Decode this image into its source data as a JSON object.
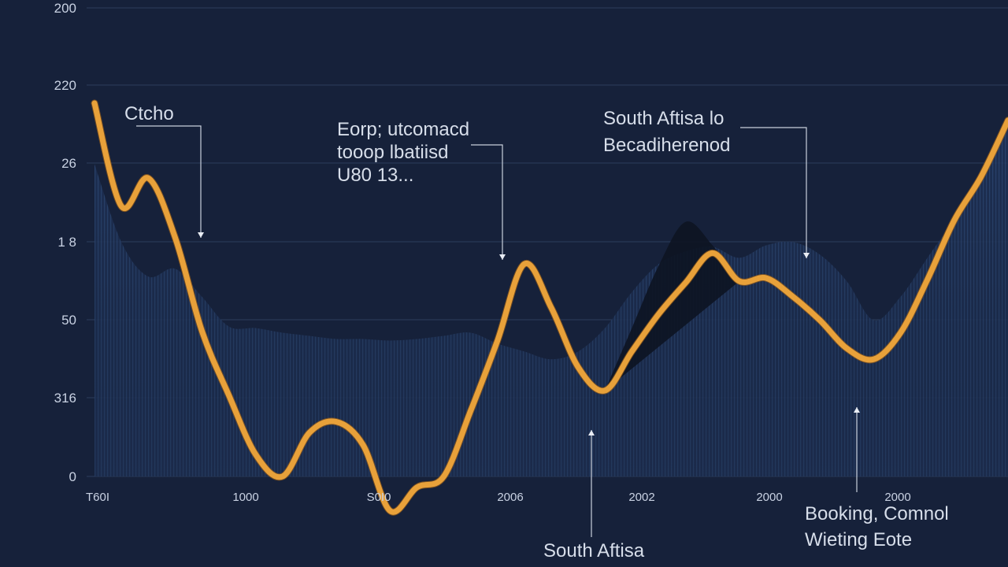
{
  "chart_data": {
    "type": "line",
    "title": "",
    "xlabel": "",
    "ylabel": "",
    "ylim": [
      0,
      300
    ],
    "grid": true,
    "y_ticks": [
      "0",
      "316",
      "50",
      "1 8",
      "26",
      "220",
      "200"
    ],
    "x_ticks": [
      "T60I",
      "1000",
      "S0I0",
      "2006",
      "2002",
      "2000",
      "2000"
    ],
    "series": [
      {
        "values": [
          239,
          173,
          191,
          153,
          93,
          52,
          14,
          0,
          28,
          35,
          20,
          -22,
          -7,
          0,
          42,
          87,
          136,
          108,
          70,
          55,
          80,
          104,
          124,
          143,
          125,
          127,
          115,
          100,
          82,
          75,
          92,
          126,
          164,
          192,
          228
        ]
      }
    ],
    "background_area": {
      "values": [
        200,
        150,
        128,
        133,
        115,
        96,
        95,
        92,
        90,
        88,
        88,
        87,
        88,
        90,
        92,
        85,
        80,
        75,
        80,
        95,
        118,
        136,
        144,
        147,
        140,
        148,
        150,
        142,
        125,
        100,
        115,
        140,
        165,
        195,
        230
      ]
    },
    "peak_area": {
      "values": [
        0,
        0,
        0,
        0,
        0,
        0,
        0,
        0,
        0,
        0,
        0,
        0,
        0,
        0,
        0,
        0,
        0,
        0,
        0,
        0,
        95,
        135,
        163,
        148,
        0
      ]
    },
    "annotations": [
      {
        "lines": [
          "Ctcho"
        ]
      },
      {
        "lines": [
          "Eorp; utcomacd",
          "tooop lbatiisd",
          "U80 13..."
        ]
      },
      {
        "lines": [
          "South Aftisa lo",
          "Becadiherenod"
        ]
      },
      {
        "lines": [
          "South Aftisa"
        ]
      },
      {
        "lines": [
          "Booking, Comnol",
          "Wieting Eote"
        ]
      }
    ],
    "colors": {
      "background": "#16213a",
      "line": "#e8a13a",
      "line_shadow": "#9a5f1a",
      "area": "#1f3358",
      "area_stripe": "#2d4a78",
      "peak": "#0d1422",
      "grid": "#2c3d5c"
    }
  }
}
